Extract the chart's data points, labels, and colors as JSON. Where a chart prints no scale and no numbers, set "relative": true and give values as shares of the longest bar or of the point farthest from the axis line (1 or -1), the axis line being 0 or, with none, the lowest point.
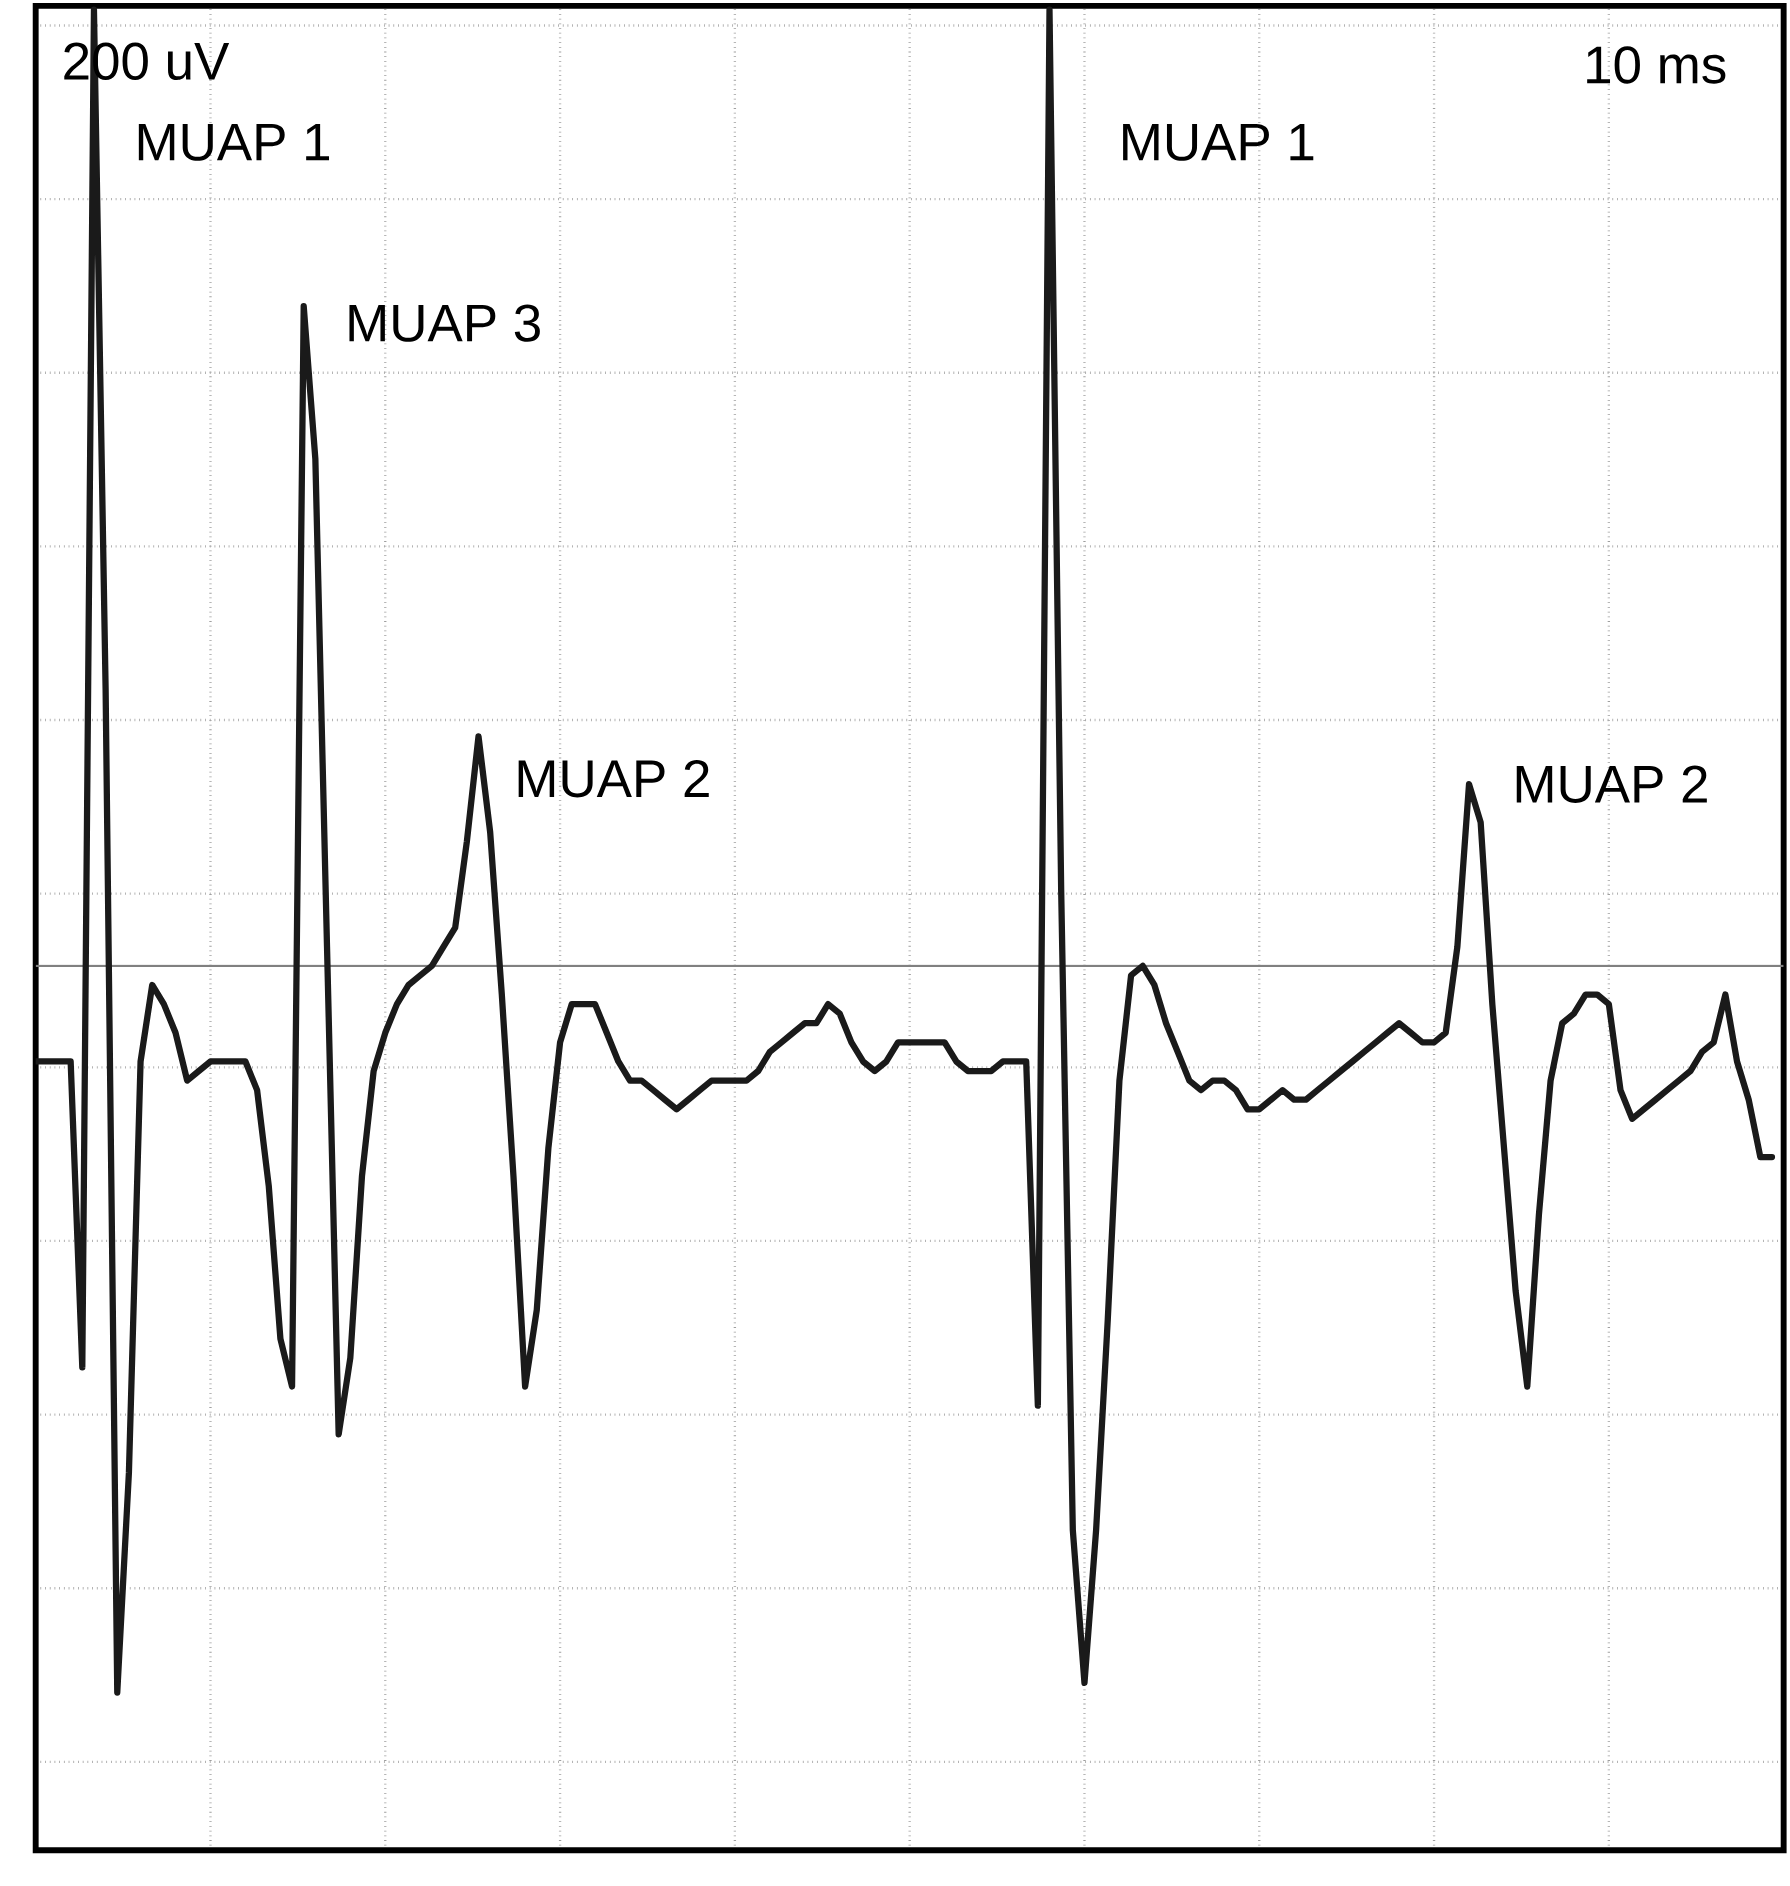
{
  "chart_data": {
    "type": "line",
    "relative": true,
    "grid": true,
    "line_style": "solid",
    "categories": [
      null,
      null,
      null,
      null,
      null,
      null,
      null,
      null,
      null,
      null,
      null,
      null,
      null,
      null,
      null,
      null,
      null,
      null,
      null,
      null,
      null,
      null,
      null,
      null,
      null,
      null,
      null,
      null,
      null,
      null,
      null,
      null,
      null,
      null,
      null,
      null,
      null,
      null,
      null,
      null,
      null,
      null,
      null,
      null,
      null,
      null,
      null,
      null,
      null,
      null,
      null,
      null,
      null,
      null,
      null,
      null,
      null,
      null,
      null,
      null,
      null,
      null,
      null,
      null,
      null,
      null,
      null,
      null,
      null,
      null,
      null,
      null,
      null,
      null,
      null,
      null,
      null,
      null,
      null,
      null,
      null,
      null,
      null,
      null,
      null,
      null,
      null,
      null,
      null,
      null,
      null,
      null,
      null,
      null,
      null,
      null,
      null,
      null,
      null,
      null,
      null,
      null,
      null,
      null,
      null,
      null,
      null,
      null,
      null,
      null,
      null,
      null,
      null,
      null,
      null,
      null,
      null,
      null,
      null,
      null,
      null,
      null,
      null,
      null,
      null,
      null,
      null,
      null,
      null,
      null,
      null,
      null,
      null,
      null,
      null,
      null,
      null,
      null,
      null,
      null,
      null,
      null,
      null,
      null,
      null,
      null,
      null,
      null,
      null,
      null,
      null
    ],
    "series": [
      {
        "color": "#1a1a1a",
        "values": [
          -0.1,
          -0.1,
          -0.1,
          -0.1,
          -0.42,
          1.0,
          0.29,
          -0.76,
          -0.53,
          -0.1,
          -0.02,
          -0.04,
          -0.07,
          -0.12,
          -0.11,
          -0.1,
          -0.1,
          -0.1,
          -0.1,
          -0.13,
          -0.23,
          -0.39,
          -0.44,
          0.69,
          0.53,
          0.02,
          -0.49,
          -0.41,
          -0.22,
          -0.11,
          -0.07,
          -0.04,
          -0.02,
          -0.01,
          0.0,
          0.02,
          0.04,
          0.13,
          0.24,
          0.14,
          -0.03,
          -0.22,
          -0.44,
          -0.36,
          -0.19,
          -0.08,
          -0.04,
          -0.04,
          -0.04,
          -0.07,
          -0.1,
          -0.12,
          -0.12,
          -0.13,
          -0.14,
          -0.15,
          -0.14,
          -0.13,
          -0.12,
          -0.12,
          -0.12,
          -0.12,
          -0.11,
          -0.09,
          -0.08,
          -0.07,
          -0.06,
          -0.06,
          -0.04,
          -0.05,
          -0.08,
          -0.1,
          -0.11,
          -0.1,
          -0.08,
          -0.08,
          -0.08,
          -0.08,
          -0.08,
          -0.1,
          -0.11,
          -0.11,
          -0.11,
          -0.1,
          -0.1,
          -0.1,
          -0.46,
          1.0,
          0.08,
          -0.59,
          -0.75,
          -0.59,
          -0.37,
          -0.12,
          -0.01,
          0.0,
          -0.02,
          -0.06,
          -0.09,
          -0.12,
          -0.13,
          -0.12,
          -0.12,
          -0.13,
          -0.15,
          -0.15,
          -0.14,
          -0.13,
          -0.14,
          -0.14,
          -0.13,
          -0.12,
          -0.11,
          -0.1,
          -0.09,
          -0.08,
          -0.07,
          -0.06,
          -0.07,
          -0.08,
          -0.08,
          -0.07,
          0.02,
          0.19,
          0.15,
          -0.04,
          -0.19,
          -0.34,
          -0.44,
          -0.26,
          -0.12,
          -0.06,
          -0.05,
          -0.03,
          -0.03,
          -0.04,
          -0.13,
          -0.16,
          -0.15,
          -0.14,
          -0.13,
          -0.12,
          -0.11,
          -0.09,
          -0.08,
          -0.03,
          -0.1,
          -0.14,
          -0.2,
          -0.2,
          null
        ]
      }
    ],
    "annotations": [
      "200 uV",
      "10 ms",
      "MUAP 1",
      "MUAP 3",
      "MUAP 2",
      "MUAP 1",
      "MUAP 2"
    ]
  }
}
